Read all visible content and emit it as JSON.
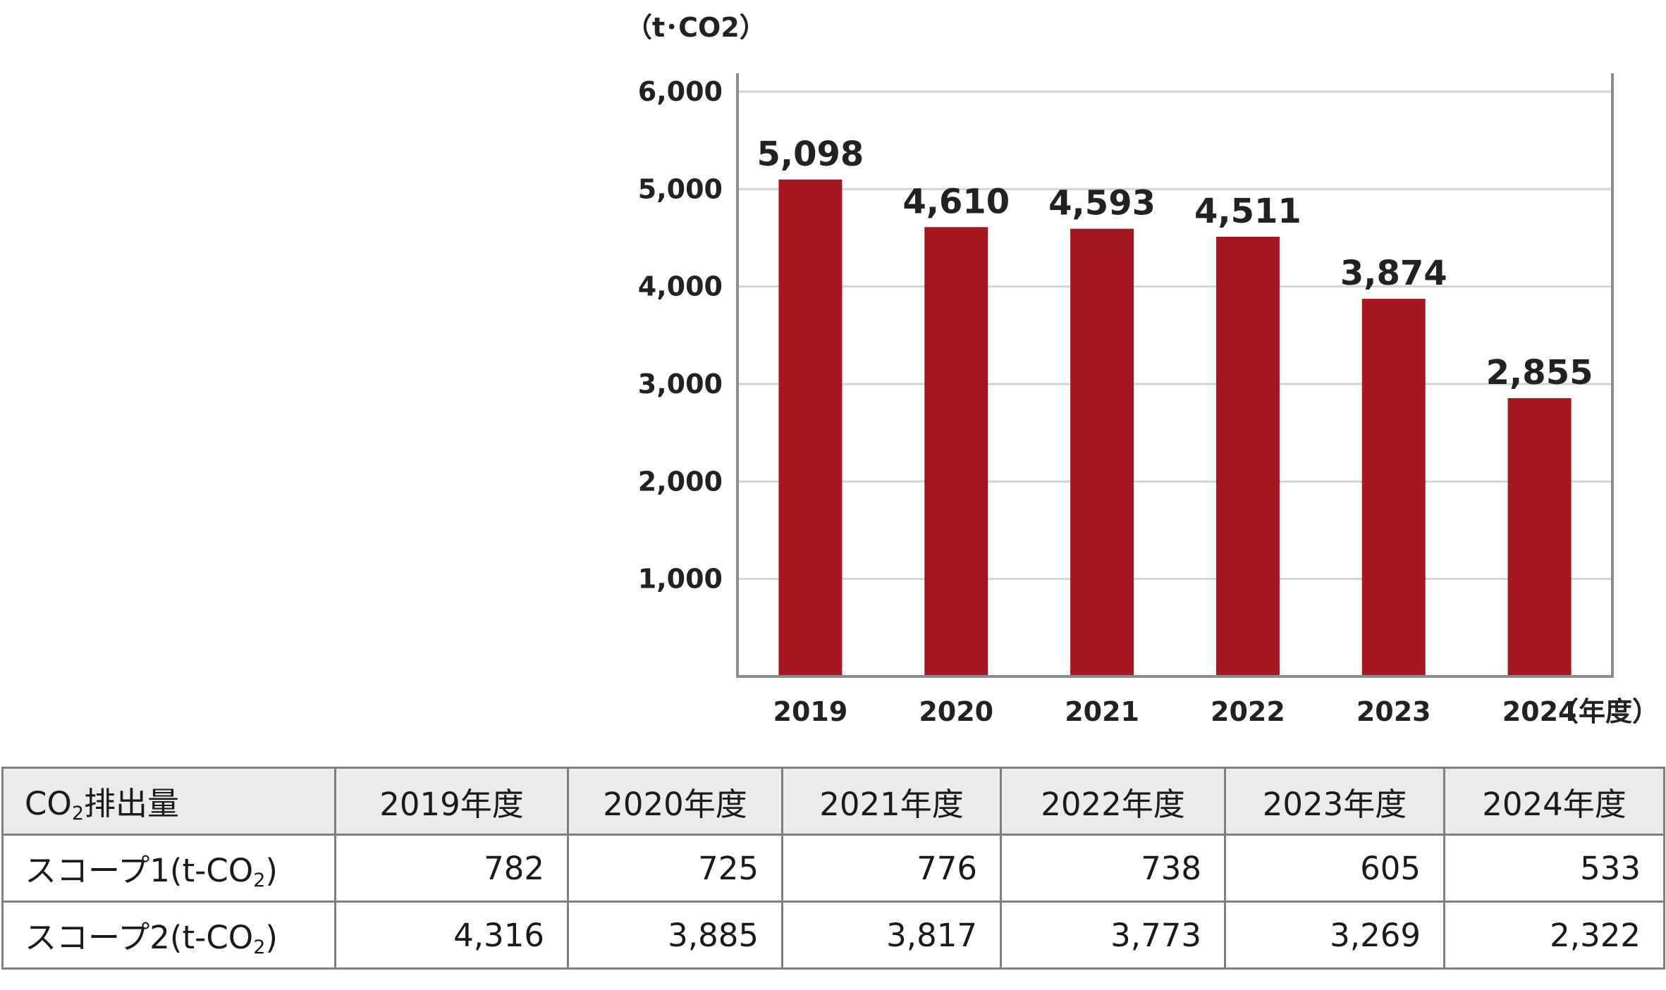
{
  "chart_data": {
    "type": "bar",
    "unit_label": "（t･CO2）",
    "xlabel": "（年度）",
    "categories": [
      "2019",
      "2020",
      "2021",
      "2022",
      "2023",
      "2024"
    ],
    "series": [
      {
        "values": [
          5098,
          4610,
          4593,
          4511,
          3874,
          2855
        ]
      }
    ],
    "data_labels": [
      "5,098",
      "4,610",
      "4,593",
      "4,511",
      "3,874",
      "2,855"
    ],
    "yticks": [
      {
        "value": 1000,
        "label": "1,000"
      },
      {
        "value": 2000,
        "label": "2,000"
      },
      {
        "value": 3000,
        "label": "3,000"
      },
      {
        "value": 4000,
        "label": "4,000"
      },
      {
        "value": 5000,
        "label": "5,000"
      },
      {
        "value": 6000,
        "label": "6,000"
      }
    ],
    "ylim": [
      0,
      6000
    ],
    "grid": true,
    "bar_color": "#a51820"
  },
  "table": {
    "header": {
      "row_label_main": "CO",
      "row_label_sub": "2",
      "row_label_rest": "排出量",
      "columns": [
        "2019年度",
        "2020年度",
        "2021年度",
        "2022年度",
        "2023年度",
        "2024年度"
      ]
    },
    "rows": [
      {
        "label_pre": "スコープ1(t-CO",
        "label_sub": "2",
        "label_post": ")",
        "values": [
          "782",
          "725",
          "776",
          "738",
          "605",
          "533"
        ]
      },
      {
        "label_pre": "スコープ2(t-CO",
        "label_sub": "2",
        "label_post": ")",
        "values": [
          "4,316",
          "3,885",
          "3,817",
          "3,773",
          "3,269",
          "2,322"
        ]
      }
    ]
  }
}
